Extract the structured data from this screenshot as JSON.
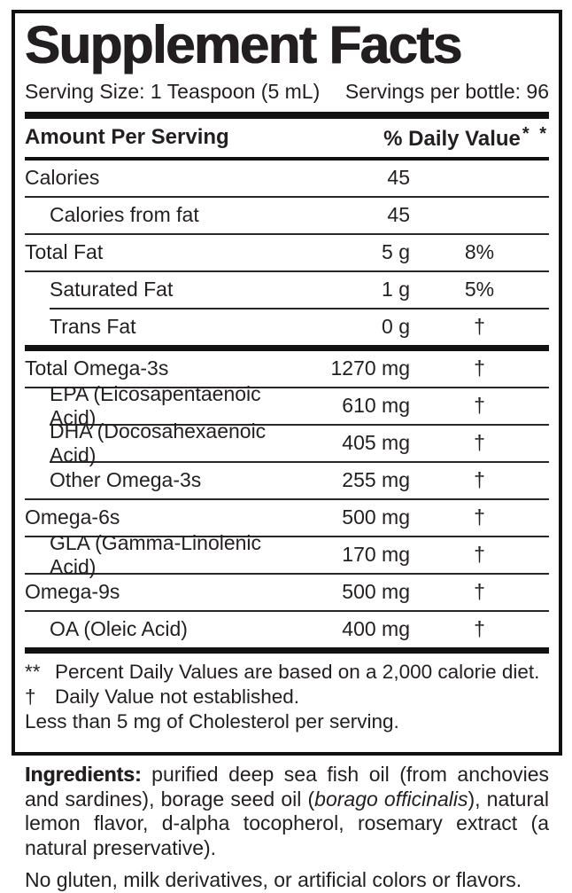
{
  "title": "Supplement Facts",
  "serving": {
    "size": "Serving Size: 1 Teaspoon (5 mL)",
    "per_bottle": "Servings per bottle: 96"
  },
  "header": {
    "amount_col": "Amount Per Serving",
    "dv_col": "% Daily Value",
    "dv_marks": "* *"
  },
  "table": {
    "rows": [
      {
        "name": "Calories",
        "amount": "45",
        "dv": ""
      },
      {
        "name": "Calories from fat",
        "amount": "45",
        "dv": ""
      },
      {
        "name": "Total Fat",
        "amount": "5 g",
        "dv": "8%"
      },
      {
        "name": "Saturated Fat",
        "amount": "1 g",
        "dv": "5%"
      },
      {
        "name": "Trans Fat",
        "amount": "0 g",
        "dv": "†"
      },
      {
        "name": "Total Omega-3s",
        "amount": "1270 mg",
        "dv": "†"
      },
      {
        "name": "EPA (Eicosapentaenoic Acid)",
        "amount": "610 mg",
        "dv": "†"
      },
      {
        "name": "DHA (Docosahexaenoic Acid)",
        "amount": "405 mg",
        "dv": "†"
      },
      {
        "name": "Other Omega-3s",
        "amount": "255 mg",
        "dv": "†"
      },
      {
        "name": "Omega-6s",
        "amount": "500 mg",
        "dv": "†"
      },
      {
        "name": "GLA (Gamma-Linolenic Acid)",
        "amount": "170 mg",
        "dv": "†"
      },
      {
        "name": "Omega-9s",
        "amount": "500 mg",
        "dv": "†"
      },
      {
        "name": "OA (Oleic Acid)",
        "amount": "400 mg",
        "dv": "†"
      }
    ]
  },
  "footnotes": {
    "dv_symbol": "**",
    "dv_text": "Percent Daily Values are based on a 2,000 calorie diet.",
    "dagger_symbol": "†",
    "dagger_text": "Daily Value not established.",
    "cholesterol_text": "Less than 5 mg of Cholesterol per serving."
  },
  "ingredients": {
    "label": "Ingredients:",
    "part1": " purified deep sea fish oil (from anchovies and sardines), borage seed oil (",
    "italic": "borago officinalis",
    "part2": "), natural lemon flavor, d-alpha tocopherol, rosemary extract (a natural preservative)."
  },
  "allergen_note": "No gluten, milk derivatives, or artificial colors or flavors.",
  "colors": {
    "text": "#231f20",
    "rule": "#111111",
    "background": "#ffffff"
  }
}
